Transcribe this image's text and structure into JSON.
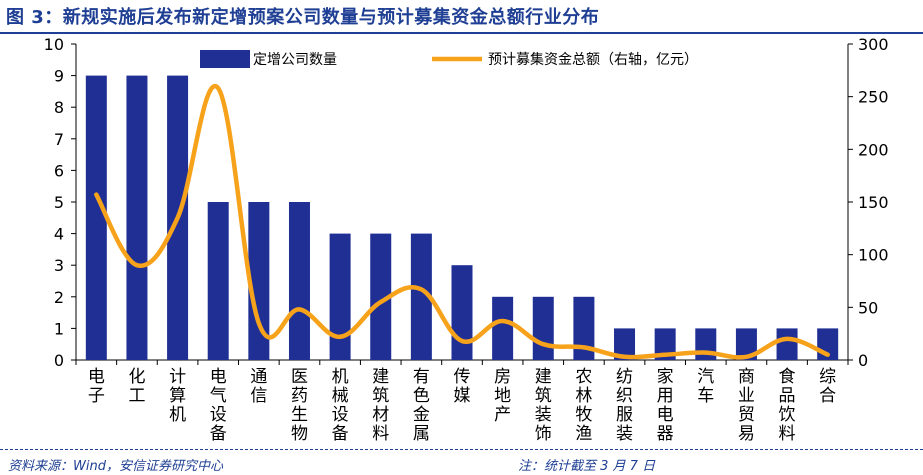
{
  "figure": {
    "title": "图 3：新规实施后发布新定增预案公司数量与预计募集资金总额行业分布",
    "source": "资料来源：Wind，安信证券研究中心",
    "note": "注：统计截至 3 月 7 日"
  },
  "chart_data": {
    "type": "bar",
    "categories": [
      "电子",
      "化工",
      "计算机",
      "电气设备",
      "通信",
      "医药生物",
      "机械设备",
      "建筑材料",
      "有色金属",
      "传媒",
      "房地产",
      "建筑装饰",
      "农林牧渔",
      "纺织服装",
      "家用电器",
      "汽车",
      "商业贸易",
      "食品饮料",
      "综合"
    ],
    "series": [
      {
        "name": "定增公司数量",
        "type": "bar",
        "axis": "left",
        "color": "#1f2f94",
        "values": [
          9,
          9,
          9,
          5,
          5,
          5,
          4,
          4,
          4,
          3,
          2,
          2,
          2,
          1,
          1,
          1,
          1,
          1,
          1
        ]
      },
      {
        "name": "预计募集资金总额（右轴，亿元）",
        "type": "line",
        "axis": "right",
        "color": "#f7a21b",
        "values": [
          157,
          90,
          135,
          258,
          35,
          48,
          22,
          55,
          67,
          18,
          37,
          15,
          12,
          3,
          5,
          7,
          3,
          20,
          5
        ]
      }
    ],
    "ylim_left": [
      0,
      10
    ],
    "yticks_left": [
      0,
      1,
      2,
      3,
      4,
      5,
      6,
      7,
      8,
      9,
      10
    ],
    "ylim_right": [
      0,
      300
    ],
    "yticks_right": [
      0,
      50,
      100,
      150,
      200,
      250,
      300
    ],
    "legend_position": "top",
    "grid": false
  }
}
